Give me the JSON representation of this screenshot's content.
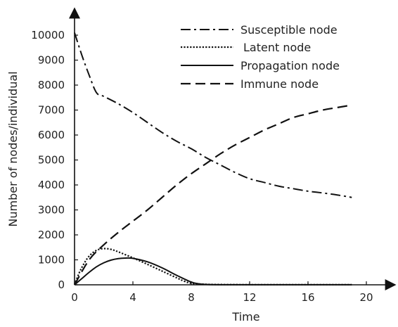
{
  "chart_data": {
    "type": "line",
    "title": "",
    "xlabel": "Time",
    "ylabel": "Number of nodes/individual",
    "xlim": [
      0,
      21
    ],
    "ylim": [
      0,
      11500
    ],
    "x_ticks": [
      0,
      4,
      8,
      12,
      16,
      20
    ],
    "y_ticks": [
      0,
      1000,
      2000,
      3000,
      4000,
      5000,
      6000,
      7000,
      8000,
      9000,
      10000
    ],
    "x_tick_labels": [
      "0",
      "4",
      "8",
      "12",
      "16",
      "20"
    ],
    "y_tick_labels": [
      "0",
      "1000",
      "2000",
      "3000",
      "4000",
      "5000",
      "6000",
      "7000",
      "8000",
      "9000",
      "10000"
    ],
    "grid": false,
    "legend_position": "top-right",
    "series": [
      {
        "name": "Susceptible node",
        "style": "dash-dot",
        "x": [
          0,
          0.5,
          1,
          1.5,
          2,
          3,
          4,
          5,
          6,
          7,
          8,
          9,
          10,
          11,
          12,
          13,
          14,
          15,
          16,
          17,
          18,
          19
        ],
        "y": [
          10100,
          9200,
          8400,
          7700,
          7550,
          7250,
          6900,
          6500,
          6100,
          5750,
          5450,
          5100,
          4800,
          4500,
          4250,
          4100,
          3950,
          3850,
          3750,
          3680,
          3600,
          3500
        ]
      },
      {
        "name": "Latent node",
        "style": "dotted",
        "x": [
          0,
          0.3,
          0.6,
          1,
          1.5,
          2,
          2.5,
          3,
          4,
          5,
          6,
          7,
          7.5,
          8,
          9,
          10,
          12,
          16,
          19
        ],
        "y": [
          0,
          450,
          800,
          1150,
          1380,
          1450,
          1420,
          1320,
          1080,
          820,
          550,
          280,
          150,
          60,
          20,
          10,
          5,
          5,
          5
        ]
      },
      {
        "name": "Propagation node",
        "style": "solid",
        "x": [
          0,
          0.5,
          1,
          1.5,
          2,
          2.5,
          3,
          3.5,
          4,
          5,
          6,
          7,
          8,
          8.5,
          9,
          10,
          12,
          16,
          19
        ],
        "y": [
          0,
          250,
          500,
          720,
          880,
          990,
          1050,
          1070,
          1060,
          920,
          680,
          380,
          110,
          40,
          15,
          5,
          3,
          3,
          3
        ]
      },
      {
        "name": "Immune node",
        "style": "dashed",
        "x": [
          0,
          1,
          2,
          3,
          4,
          5,
          6,
          7,
          8,
          9,
          10,
          11,
          12,
          13,
          14,
          15,
          16,
          17,
          18,
          19
        ],
        "y": [
          0,
          1000,
          1600,
          2100,
          2550,
          3000,
          3500,
          4000,
          4450,
          4850,
          5250,
          5600,
          5900,
          6200,
          6450,
          6700,
          6850,
          7000,
          7100,
          7200
        ]
      }
    ]
  }
}
